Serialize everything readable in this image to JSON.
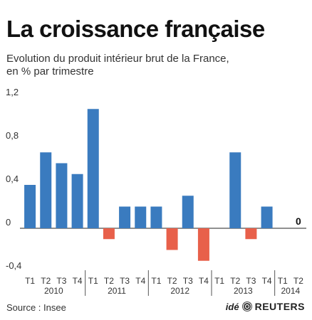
{
  "header": {
    "title": "La croissance française",
    "subtitle_line1": "Evolution du produit intérieur brut de la France,",
    "subtitle_line2": "en % par trimestre"
  },
  "footer": {
    "source": "Source : Insee",
    "logo_prefix": "idé",
    "logo_brand": "REUTERS"
  },
  "colors": {
    "positive": "#3a7bbf",
    "negative": "#e8604a",
    "axis": "#222222",
    "text": "#333333"
  },
  "chart_data": {
    "type": "bar",
    "title": "La croissance française",
    "ylim": [
      -0.4,
      1.2
    ],
    "yticks": [
      -0.4,
      0,
      0.4,
      0.8,
      1.2
    ],
    "ytick_labels": [
      "-0,4",
      "0",
      "0,4",
      "0,8",
      "1,2"
    ],
    "categories": [
      "T1",
      "T2",
      "T3",
      "T4",
      "T1",
      "T2",
      "T3",
      "T4",
      "T1",
      "T2",
      "T3",
      "T4",
      "T1",
      "T2",
      "T3",
      "T4",
      "T1",
      "T2"
    ],
    "years": [
      "2010",
      "2011",
      "2012",
      "2013",
      "2014"
    ],
    "values": [
      0.4,
      0.7,
      0.6,
      0.5,
      1.1,
      -0.1,
      0.2,
      0.2,
      0.2,
      -0.2,
      0.3,
      -0.3,
      0.0,
      0.7,
      -0.1,
      0.2,
      null,
      0.0
    ],
    "annotations": [
      {
        "category_index": 17,
        "text": "0"
      }
    ],
    "grid": false
  }
}
